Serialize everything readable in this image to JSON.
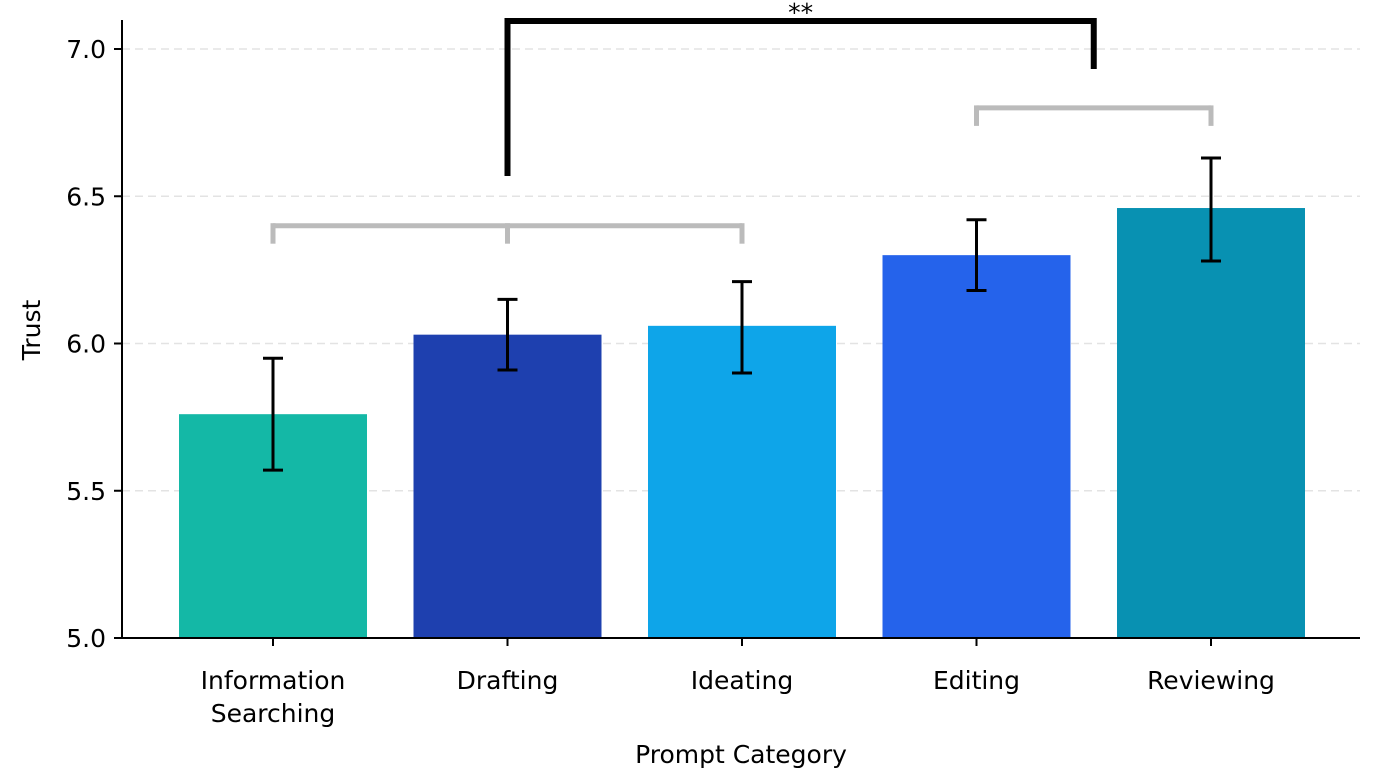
{
  "chart_data": {
    "type": "bar",
    "title": "",
    "xlabel": "Prompt Category",
    "ylabel": "Trust",
    "ylim": [
      5.0,
      7.1
    ],
    "yticks": [
      "5.0",
      "5.5",
      "6.0",
      "6.5",
      "7.0"
    ],
    "grid": "horizontal dashed",
    "categories": [
      [
        "Information",
        "Searching"
      ],
      [
        "Drafting"
      ],
      [
        "Ideating"
      ],
      [
        "Editing"
      ],
      [
        "Reviewing"
      ]
    ],
    "values": [
      5.76,
      6.03,
      6.06,
      6.3,
      6.46
    ],
    "error_low": [
      5.57,
      5.91,
      5.9,
      6.18,
      6.28
    ],
    "error_high": [
      5.95,
      6.15,
      6.21,
      6.42,
      6.63
    ],
    "colors": [
      "#14b8a6",
      "#1e40af",
      "#0ea5e9",
      "#2563eb",
      "#0891b2"
    ],
    "brackets": [
      {
        "type": "group",
        "members": [
          0,
          1,
          2
        ],
        "level": 6.4,
        "color": "#bbbbbb",
        "label": ""
      },
      {
        "type": "group",
        "members": [
          3,
          4
        ],
        "level": 6.8,
        "color": "#bbbbbb",
        "label": ""
      },
      {
        "type": "comparison",
        "from": 1,
        "to": 3.5,
        "level": 7.09,
        "color": "#000000",
        "label": "**"
      }
    ]
  }
}
